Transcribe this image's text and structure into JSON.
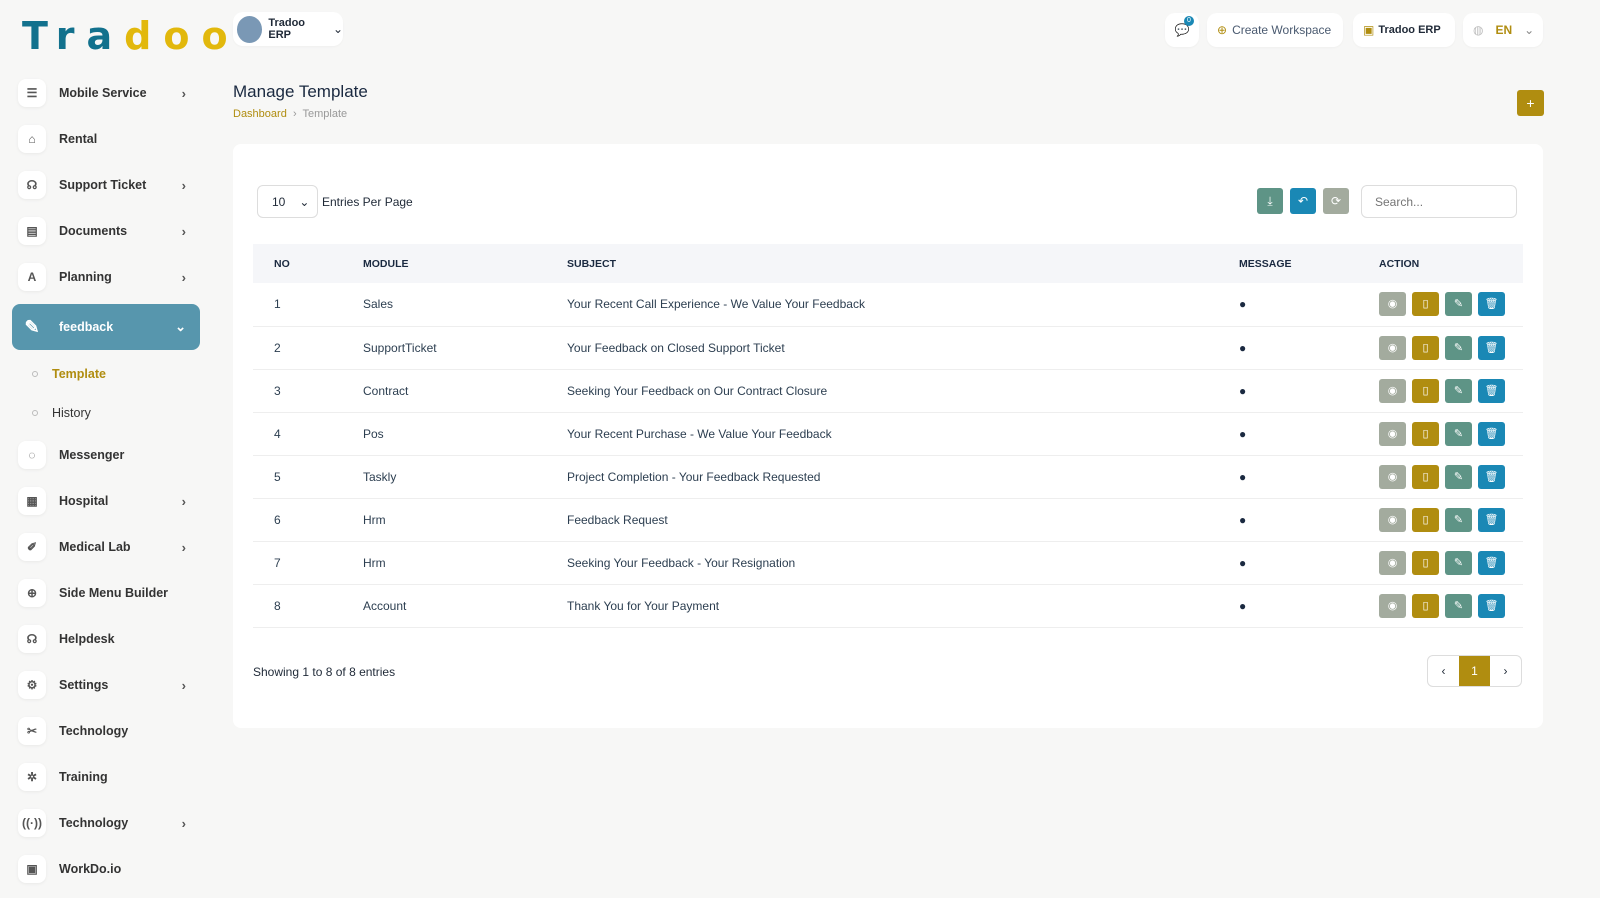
{
  "brand": {
    "logo_a": "Tra",
    "logo_b": "doo"
  },
  "header": {
    "workspace": "Tradoo ERP",
    "notif_count": "0",
    "create_workspace": "Create Workspace",
    "erp_switch": "Tradoo ERP",
    "lang": "EN"
  },
  "sidebar": {
    "items": [
      {
        "label": "Mobile Service",
        "icon": "☰",
        "chev": true
      },
      {
        "label": "Rental",
        "icon": "⌂",
        "chev": false
      },
      {
        "label": "Support Ticket",
        "icon": "☊",
        "chev": true
      },
      {
        "label": "Documents",
        "icon": "▤",
        "chev": true
      },
      {
        "label": "Planning",
        "icon": "A",
        "chev": true
      }
    ],
    "active": {
      "label": "feedback",
      "icon": "✎"
    },
    "subs": [
      {
        "label": "Template",
        "active": true
      },
      {
        "label": "History",
        "active": false
      }
    ],
    "items2": [
      {
        "label": "Messenger",
        "icon": "◌",
        "chev": false
      },
      {
        "label": "Hospital",
        "icon": "▦",
        "chev": true
      },
      {
        "label": "Medical Lab",
        "icon": "✐",
        "chev": true
      },
      {
        "label": "Side Menu Builder",
        "icon": "⊕",
        "chev": false
      },
      {
        "label": "Helpdesk",
        "icon": "☊",
        "chev": false
      },
      {
        "label": "Settings",
        "icon": "⚙",
        "chev": true
      },
      {
        "label": "Technology",
        "icon": "✂",
        "chev": false
      },
      {
        "label": "Training",
        "icon": "✲",
        "chev": false
      },
      {
        "label": "Technology",
        "icon": "((·))",
        "chev": true
      },
      {
        "label": "WorkDo.io",
        "icon": "▣",
        "chev": false
      }
    ]
  },
  "page": {
    "title": "Manage Template",
    "crumb_home": "Dashboard",
    "crumb_current": "Template"
  },
  "table": {
    "per_page": "10",
    "per_page_label": "Entries Per Page",
    "search_placeholder": "Search...",
    "headers": [
      "NO",
      "MODULE",
      "SUBJECT",
      "MESSAGE",
      "ACTION"
    ],
    "rows": [
      [
        "1",
        "Sales",
        "Your Recent Call Experience - We Value Your Feedback"
      ],
      [
        "2",
        "SupportTicket",
        "Your Feedback on Closed Support Ticket"
      ],
      [
        "3",
        "Contract",
        "Seeking Your Feedback on Our Contract Closure"
      ],
      [
        "4",
        "Pos",
        "Your Recent Purchase - We Value Your Feedback"
      ],
      [
        "5",
        "Taskly",
        "Project Completion - Your Feedback Requested"
      ],
      [
        "6",
        "Hrm",
        "Feedback Request"
      ],
      [
        "7",
        "Hrm",
        "Seeking Your Feedback - Your Resignation"
      ],
      [
        "8",
        "Account",
        "Thank You for Your Payment"
      ]
    ],
    "showing": "Showing 1 to 8 of 8 entries",
    "page": "1"
  },
  "colors": {
    "accent": "#b08d10",
    "teal": "#5796ad",
    "green": "#5e9486",
    "blue": "#1a88b5",
    "grey": "#a3ab9e"
  }
}
